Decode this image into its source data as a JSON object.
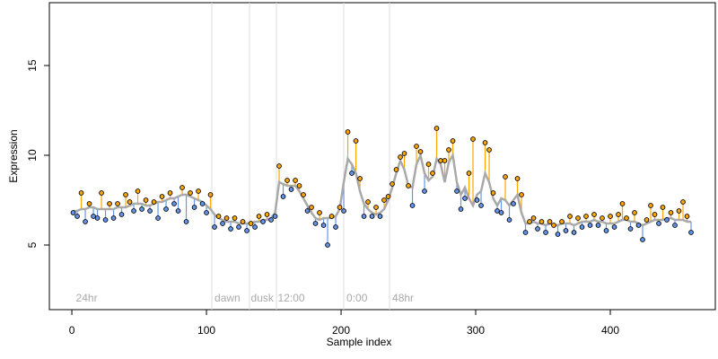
{
  "chart_data": {
    "type": "scatter",
    "xlabel": "Sample index",
    "ylabel": "Expression",
    "xlim": [
      -16.7,
      478
    ],
    "ylim": [
      1.4,
      18.5
    ],
    "xticks": [
      0,
      100,
      200,
      300,
      400
    ],
    "yticks": [
      5,
      10,
      15
    ],
    "vlines": [
      104,
      132,
      152,
      202,
      236
    ],
    "vline_color": "#dddddd",
    "annotation_y": 2.0,
    "annotations": [
      {
        "x": 3,
        "label": "24hr"
      },
      {
        "x": 106,
        "label": "dawn"
      },
      {
        "x": 133,
        "label": "dusk"
      },
      {
        "x": 153,
        "label": "12:00"
      },
      {
        "x": 204,
        "label": "0:00"
      },
      {
        "x": 238,
        "label": "48hr"
      }
    ],
    "above_color": "#ffa500",
    "below_color": "#6495ed",
    "x": [
      1,
      4,
      7,
      10,
      13,
      16,
      19,
      22,
      25,
      28,
      31,
      34,
      37,
      40,
      43,
      46,
      49,
      52,
      55,
      58,
      61,
      64,
      67,
      70,
      73,
      76,
      79,
      82,
      85,
      88,
      91,
      94,
      97,
      100,
      103,
      106,
      109,
      112,
      115,
      118,
      121,
      124,
      127,
      130,
      133,
      136,
      139,
      142,
      145,
      148,
      151,
      154,
      157,
      160,
      163,
      166,
      169,
      172,
      175,
      178,
      181,
      184,
      187,
      190,
      193,
      196,
      199,
      202,
      205,
      208,
      211,
      214,
      217,
      220,
      223,
      226,
      229,
      232,
      235,
      238,
      241,
      244,
      247,
      250,
      253,
      256,
      259,
      262,
      265,
      268,
      271,
      274,
      277,
      280,
      283,
      286,
      289,
      292,
      295,
      298,
      301,
      304,
      307,
      310,
      313,
      316,
      319,
      322,
      325,
      328,
      331,
      334,
      337,
      340,
      343,
      346,
      349,
      352,
      355,
      358,
      361,
      364,
      367,
      370,
      373,
      376,
      379,
      382,
      385,
      388,
      391,
      394,
      397,
      400,
      403,
      406,
      409,
      412,
      415,
      418,
      421,
      424,
      427,
      430,
      433,
      436,
      439,
      442,
      445,
      448,
      451,
      454,
      457,
      460
    ],
    "series": [
      {
        "color": "#a9a9a9",
        "style": "line",
        "values": [
          6.9,
          6.9,
          7.0,
          7.0,
          7.1,
          7.1,
          7.0,
          7.0,
          7.0,
          7.0,
          7.0,
          7.1,
          7.1,
          7.1,
          7.2,
          7.3,
          7.3,
          7.3,
          7.2,
          7.2,
          7.3,
          7.4,
          7.4,
          7.5,
          7.6,
          7.6,
          7.7,
          7.8,
          7.8,
          7.7,
          7.6,
          7.5,
          7.4,
          7.2,
          7.0,
          6.7,
          6.5,
          6.4,
          6.3,
          6.3,
          6.3,
          6.2,
          6.2,
          6.2,
          6.2,
          6.3,
          6.3,
          6.4,
          6.4,
          6.5,
          6.8,
          8.5,
          8.4,
          8.3,
          8.3,
          8.3,
          8.0,
          7.6,
          7.2,
          6.8,
          6.5,
          6.4,
          6.5,
          6.5,
          6.5,
          6.6,
          7.0,
          8.5,
          9.8,
          9.5,
          9.0,
          8.0,
          7.3,
          7.0,
          6.8,
          6.7,
          6.8,
          7.0,
          7.5,
          8.2,
          9.0,
          9.7,
          9.2,
          8.3,
          8.2,
          9.5,
          10.0,
          9.0,
          8.6,
          8.8,
          9.8,
          9.5,
          8.5,
          9.6,
          10.0,
          8.5,
          7.8,
          8.2,
          7.6,
          7.2,
          7.8,
          8.0,
          9.0,
          8.5,
          7.6,
          7.2,
          7.6,
          7.5,
          7.2,
          7.5,
          7.8,
          6.8,
          6.2,
          6.2,
          6.3,
          6.2,
          6.2,
          6.1,
          6.2,
          6.1,
          6.1,
          6.2,
          6.2,
          6.2,
          6.1,
          6.2,
          6.3,
          6.3,
          6.3,
          6.4,
          6.3,
          6.3,
          6.2,
          6.2,
          6.2,
          6.3,
          6.4,
          6.4,
          6.3,
          6.3,
          6.2,
          6.1,
          6.2,
          6.3,
          6.4,
          6.4,
          6.4,
          6.5,
          6.5,
          6.4,
          6.4,
          6.4,
          6.3,
          6.3
        ]
      },
      {
        "color": "#000000",
        "style": "points",
        "values": [
          6.8,
          6.6,
          7.9,
          6.3,
          7.3,
          6.6,
          6.5,
          7.9,
          6.4,
          7.3,
          6.5,
          7.3,
          6.7,
          7.8,
          7.4,
          6.9,
          8.0,
          7.0,
          7.5,
          6.9,
          7.4,
          6.5,
          7.7,
          7.0,
          7.9,
          7.3,
          6.9,
          8.2,
          6.3,
          7.9,
          7.1,
          8.0,
          7.3,
          6.8,
          7.8,
          6.0,
          6.6,
          6.2,
          6.5,
          5.9,
          6.5,
          6.0,
          6.3,
          5.8,
          6.2,
          6.0,
          6.6,
          6.3,
          6.7,
          6.4,
          6.6,
          9.4,
          7.7,
          8.6,
          8.1,
          8.6,
          8.3,
          7.8,
          6.9,
          7.1,
          6.2,
          6.8,
          6.1,
          5.0,
          6.6,
          6.0,
          7.1,
          6.9,
          11.3,
          9.0,
          10.8,
          8.7,
          6.6,
          7.4,
          6.6,
          7.1,
          6.6,
          7.5,
          7.7,
          8.4,
          9.2,
          9.9,
          10.1,
          8.3,
          7.2,
          10.5,
          10.2,
          8.0,
          9.5,
          9.0,
          11.5,
          9.7,
          9.7,
          10.3,
          10.8,
          8.0,
          7.0,
          7.6,
          9.0,
          10.9,
          7.5,
          7.2,
          10.7,
          10.3,
          7.9,
          6.9,
          6.8,
          8.8,
          6.4,
          7.3,
          8.7,
          7.8,
          5.7,
          6.3,
          6.5,
          5.9,
          6.3,
          5.7,
          6.3,
          6.1,
          5.6,
          6.3,
          5.8,
          6.6,
          5.7,
          6.5,
          6.0,
          6.6,
          6.1,
          6.7,
          6.1,
          6.5,
          5.8,
          6.6,
          6.0,
          6.7,
          7.3,
          6.5,
          5.9,
          6.8,
          6.1,
          5.3,
          6.4,
          7.2,
          6.7,
          6.2,
          7.1,
          6.4,
          6.8,
          6.1,
          6.9,
          7.4,
          6.6,
          5.7
        ]
      }
    ]
  }
}
